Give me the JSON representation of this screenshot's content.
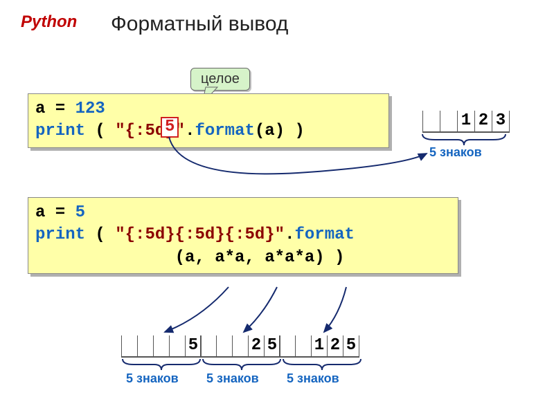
{
  "colors": {
    "python_label": "#c00000",
    "title": "#222222",
    "code_bg": "#ffffa8",
    "shadow": "#b0b0b0",
    "keyword": "#1565c0",
    "string": "#8b0000",
    "callout_bg": "#d6f3c9",
    "redbox_border": "#d02020",
    "arrow": "#152a6e",
    "brace_label": "#1565c0"
  },
  "labels": {
    "python": "Python",
    "title": "Форматный вывод",
    "callout": "целое",
    "redbox_value": "5",
    "five_chars": "5 знаков"
  },
  "code1": {
    "line1_a": "a = ",
    "line1_num": "123",
    "line2_print": " print",
    "line2_open": " ( ",
    "line2_str": "\"{:5d}\"",
    "line2_dot": ".",
    "line2_format": "format",
    "line2_args": "(a) )"
  },
  "code2": {
    "line1_a": "a = ",
    "line1_num": "5",
    "line2_print": " print",
    "line2_open": " ( ",
    "line2_str": "\"{:5d}{:5d}{:5d}\"",
    "line2_dot": ".",
    "line2_format": "format",
    "line3_args": "              (a, a*a, a*a*a) )"
  },
  "output1": {
    "slots": [
      "",
      "",
      "1",
      "2",
      "3"
    ]
  },
  "output2": {
    "groups": [
      {
        "slots": [
          "",
          "",
          "",
          "",
          "5"
        ]
      },
      {
        "slots": [
          "",
          "",
          "",
          "2",
          "5"
        ]
      },
      {
        "slots": [
          "",
          "",
          "1",
          "2",
          "5"
        ]
      }
    ]
  }
}
